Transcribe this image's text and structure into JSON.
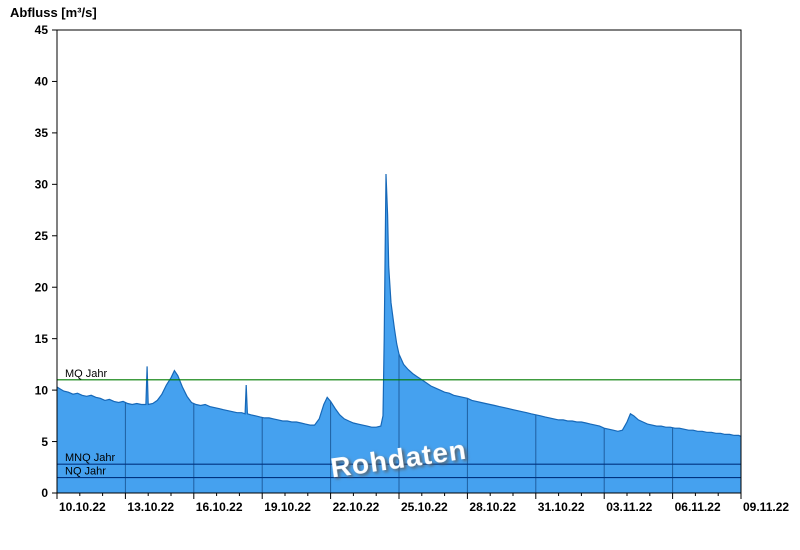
{
  "title": "Abfluss [m³/s]",
  "watermark": "Rohdaten",
  "colors": {
    "area_fill": "#45A1EF",
    "area_line": "#1668B8",
    "grid_in_area": "#1E5FA0",
    "axis": "#000000",
    "mq_line": "#007B00",
    "mnq_nq_line": "#003380"
  },
  "y_axis": {
    "min": 0,
    "max": 45,
    "step": 5,
    "unit": "m³/s"
  },
  "x_axis": {
    "tick_labels": [
      "10.10.22",
      "13.10.22",
      "16.10.22",
      "19.10.22",
      "22.10.22",
      "25.10.22",
      "28.10.22",
      "31.10.22",
      "03.11.22",
      "06.11.22",
      "09.11.22"
    ],
    "tick_days": [
      0,
      3,
      6,
      9,
      12,
      15,
      18,
      21,
      24,
      27,
      30
    ],
    "days_total": 30
  },
  "reference_lines": [
    {
      "label": "MQ Jahr",
      "value": 11.0,
      "color": "#007B00"
    },
    {
      "label": "MNQ Jahr",
      "value": 2.8,
      "color": "#003380"
    },
    {
      "label": "NQ Jahr",
      "value": 1.5,
      "color": "#003380"
    }
  ],
  "chart_data": {
    "type": "area",
    "title": "Abfluss [m³/s]",
    "ylabel": "Abfluss [m³/s]",
    "ylim": [
      0,
      45
    ],
    "x_unit": "days since 10.10.22",
    "x_tick_labels": [
      "10.10.22",
      "13.10.22",
      "16.10.22",
      "19.10.22",
      "22.10.22",
      "25.10.22",
      "28.10.22",
      "31.10.22",
      "03.11.22",
      "06.11.22",
      "09.11.22"
    ],
    "series": [
      {
        "name": "Rohdaten",
        "points": [
          [
            0,
            10.3
          ],
          [
            0.15,
            10.1
          ],
          [
            0.3,
            9.9
          ],
          [
            0.5,
            9.8
          ],
          [
            0.7,
            9.6
          ],
          [
            0.9,
            9.7
          ],
          [
            1.1,
            9.5
          ],
          [
            1.3,
            9.4
          ],
          [
            1.5,
            9.5
          ],
          [
            1.7,
            9.3
          ],
          [
            1.9,
            9.2
          ],
          [
            2.1,
            9.0
          ],
          [
            2.3,
            9.1
          ],
          [
            2.5,
            8.9
          ],
          [
            2.7,
            8.8
          ],
          [
            2.9,
            8.9
          ],
          [
            3.1,
            8.7
          ],
          [
            3.3,
            8.6
          ],
          [
            3.5,
            8.7
          ],
          [
            3.7,
            8.6
          ],
          [
            3.9,
            8.6
          ],
          [
            3.95,
            12.3
          ],
          [
            4.0,
            8.6
          ],
          [
            4.2,
            8.7
          ],
          [
            4.4,
            9.0
          ],
          [
            4.6,
            9.6
          ],
          [
            4.8,
            10.5
          ],
          [
            5.0,
            11.2
          ],
          [
            5.15,
            11.9
          ],
          [
            5.3,
            11.4
          ],
          [
            5.5,
            10.3
          ],
          [
            5.7,
            9.4
          ],
          [
            5.9,
            8.8
          ],
          [
            6.1,
            8.6
          ],
          [
            6.3,
            8.5
          ],
          [
            6.5,
            8.6
          ],
          [
            6.7,
            8.4
          ],
          [
            6.9,
            8.3
          ],
          [
            7.1,
            8.2
          ],
          [
            7.3,
            8.1
          ],
          [
            7.5,
            8.0
          ],
          [
            7.7,
            7.9
          ],
          [
            7.9,
            7.8
          ],
          [
            8.1,
            7.8
          ],
          [
            8.25,
            7.7
          ],
          [
            8.3,
            10.5
          ],
          [
            8.35,
            7.7
          ],
          [
            8.5,
            7.6
          ],
          [
            8.7,
            7.5
          ],
          [
            8.9,
            7.4
          ],
          [
            9.1,
            7.3
          ],
          [
            9.3,
            7.3
          ],
          [
            9.5,
            7.2
          ],
          [
            9.7,
            7.1
          ],
          [
            9.9,
            7.0
          ],
          [
            10.1,
            7.0
          ],
          [
            10.3,
            6.9
          ],
          [
            10.5,
            6.9
          ],
          [
            10.7,
            6.8
          ],
          [
            10.9,
            6.7
          ],
          [
            11.1,
            6.6
          ],
          [
            11.3,
            6.6
          ],
          [
            11.5,
            7.2
          ],
          [
            11.7,
            8.6
          ],
          [
            11.85,
            9.3
          ],
          [
            12.0,
            8.9
          ],
          [
            12.2,
            8.2
          ],
          [
            12.4,
            7.6
          ],
          [
            12.6,
            7.2
          ],
          [
            12.8,
            7.0
          ],
          [
            13.0,
            6.8
          ],
          [
            13.2,
            6.7
          ],
          [
            13.4,
            6.6
          ],
          [
            13.6,
            6.5
          ],
          [
            13.8,
            6.4
          ],
          [
            14.0,
            6.4
          ],
          [
            14.2,
            6.5
          ],
          [
            14.3,
            7.5
          ],
          [
            14.35,
            15.0
          ],
          [
            14.43,
            31.0
          ],
          [
            14.5,
            27.0
          ],
          [
            14.55,
            22.0
          ],
          [
            14.65,
            18.5
          ],
          [
            14.8,
            16.0
          ],
          [
            14.9,
            14.5
          ],
          [
            15.0,
            13.5
          ],
          [
            15.2,
            12.5
          ],
          [
            15.4,
            12.0
          ],
          [
            15.6,
            11.6
          ],
          [
            15.8,
            11.3
          ],
          [
            16.0,
            11.0
          ],
          [
            16.2,
            10.7
          ],
          [
            16.4,
            10.4
          ],
          [
            16.6,
            10.2
          ],
          [
            16.8,
            10.0
          ],
          [
            17.0,
            9.8
          ],
          [
            17.2,
            9.7
          ],
          [
            17.4,
            9.5
          ],
          [
            17.6,
            9.4
          ],
          [
            17.8,
            9.3
          ],
          [
            18.0,
            9.2
          ],
          [
            18.2,
            9.0
          ],
          [
            18.4,
            8.9
          ],
          [
            18.6,
            8.8
          ],
          [
            18.8,
            8.7
          ],
          [
            19.0,
            8.6
          ],
          [
            19.2,
            8.5
          ],
          [
            19.4,
            8.4
          ],
          [
            19.6,
            8.3
          ],
          [
            19.8,
            8.2
          ],
          [
            20.0,
            8.1
          ],
          [
            20.2,
            8.0
          ],
          [
            20.4,
            7.9
          ],
          [
            20.6,
            7.8
          ],
          [
            20.8,
            7.7
          ],
          [
            21.0,
            7.6
          ],
          [
            21.2,
            7.5
          ],
          [
            21.4,
            7.4
          ],
          [
            21.6,
            7.3
          ],
          [
            21.8,
            7.2
          ],
          [
            22.0,
            7.1
          ],
          [
            22.2,
            7.1
          ],
          [
            22.4,
            7.0
          ],
          [
            22.6,
            7.0
          ],
          [
            22.8,
            6.9
          ],
          [
            23.0,
            6.9
          ],
          [
            23.2,
            6.8
          ],
          [
            23.4,
            6.7
          ],
          [
            23.6,
            6.6
          ],
          [
            23.8,
            6.5
          ],
          [
            24.0,
            6.3
          ],
          [
            24.2,
            6.2
          ],
          [
            24.4,
            6.1
          ],
          [
            24.6,
            6.0
          ],
          [
            24.8,
            6.1
          ],
          [
            25.0,
            6.9
          ],
          [
            25.15,
            7.7
          ],
          [
            25.3,
            7.5
          ],
          [
            25.5,
            7.1
          ],
          [
            25.7,
            6.9
          ],
          [
            25.9,
            6.7
          ],
          [
            26.1,
            6.6
          ],
          [
            26.3,
            6.5
          ],
          [
            26.5,
            6.5
          ],
          [
            26.7,
            6.4
          ],
          [
            26.9,
            6.4
          ],
          [
            27.1,
            6.3
          ],
          [
            27.3,
            6.3
          ],
          [
            27.5,
            6.2
          ],
          [
            27.7,
            6.1
          ],
          [
            27.9,
            6.1
          ],
          [
            28.1,
            6.0
          ],
          [
            28.3,
            6.0
          ],
          [
            28.5,
            5.9
          ],
          [
            28.7,
            5.9
          ],
          [
            28.9,
            5.8
          ],
          [
            29.1,
            5.8
          ],
          [
            29.3,
            5.7
          ],
          [
            29.5,
            5.7
          ],
          [
            29.7,
            5.6
          ],
          [
            29.9,
            5.6
          ],
          [
            30,
            5.5
          ]
        ]
      }
    ]
  }
}
